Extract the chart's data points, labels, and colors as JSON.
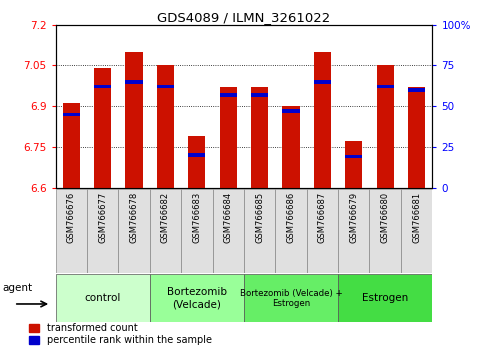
{
  "title": "GDS4089 / ILMN_3261022",
  "samples": [
    "GSM766676",
    "GSM766677",
    "GSM766678",
    "GSM766682",
    "GSM766683",
    "GSM766684",
    "GSM766685",
    "GSM766686",
    "GSM766687",
    "GSM766679",
    "GSM766680",
    "GSM766681"
  ],
  "bar_values": [
    6.91,
    7.04,
    7.1,
    7.05,
    6.79,
    6.97,
    6.97,
    6.9,
    7.1,
    6.77,
    7.05,
    6.97
  ],
  "percentile_values": [
    45,
    62,
    65,
    62,
    20,
    57,
    57,
    47,
    65,
    19,
    62,
    60
  ],
  "bar_color": "#cc1100",
  "percentile_color": "#0000cc",
  "ymin": 6.6,
  "ymax": 7.2,
  "yticks_left": [
    6.6,
    6.75,
    6.9,
    7.05,
    7.2
  ],
  "ytick_labels_left": [
    "6.6",
    "6.75",
    "6.9",
    "7.05",
    "7.2"
  ],
  "yticks_right": [
    0,
    25,
    50,
    75,
    100
  ],
  "ytick_labels_right": [
    "0",
    "25",
    "50",
    "75",
    "100%"
  ],
  "groups": [
    {
      "label": "control",
      "start": 0,
      "end": 3,
      "color": "#ccffcc"
    },
    {
      "label": "Bortezomib\n(Velcade)",
      "start": 3,
      "end": 6,
      "color": "#99ff99"
    },
    {
      "label": "Bortezomib (Velcade) +\nEstrogen",
      "start": 6,
      "end": 9,
      "color": "#66ee66"
    },
    {
      "label": "Estrogen",
      "start": 9,
      "end": 12,
      "color": "#44dd44"
    }
  ],
  "bar_width": 0.55,
  "legend_labels": [
    "transformed count",
    "percentile rank within the sample"
  ],
  "agent_label": "agent"
}
